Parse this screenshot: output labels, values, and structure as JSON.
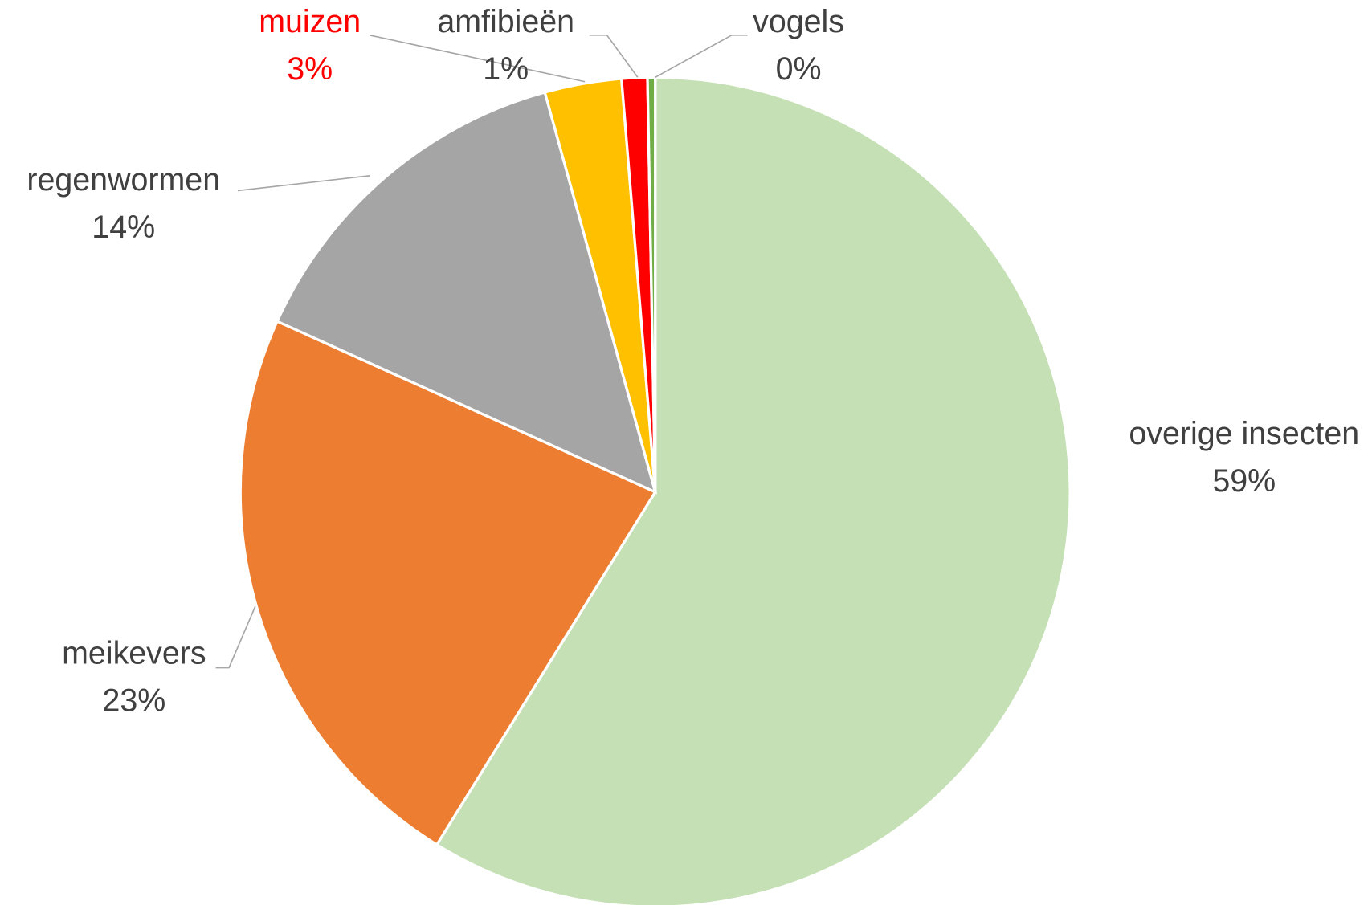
{
  "chart_data": {
    "type": "pie",
    "categories": [
      "overige insecten",
      "meikevers",
      "regenwormen",
      "muizen",
      "amfibieën",
      "vogels"
    ],
    "values": [
      59,
      23,
      14,
      3,
      1,
      0.3
    ],
    "value_labels": [
      "59%",
      "23%",
      "14%",
      "3%",
      "1%",
      "0%"
    ],
    "colors": [
      "#c5e0b4",
      "#ed7d31",
      "#a5a5a5",
      "#ffc000",
      "#ff0000",
      "#70ad47"
    ],
    "label_colors": [
      "#404040",
      "#404040",
      "#404040",
      "#ff0000",
      "#404040",
      "#404040"
    ]
  }
}
